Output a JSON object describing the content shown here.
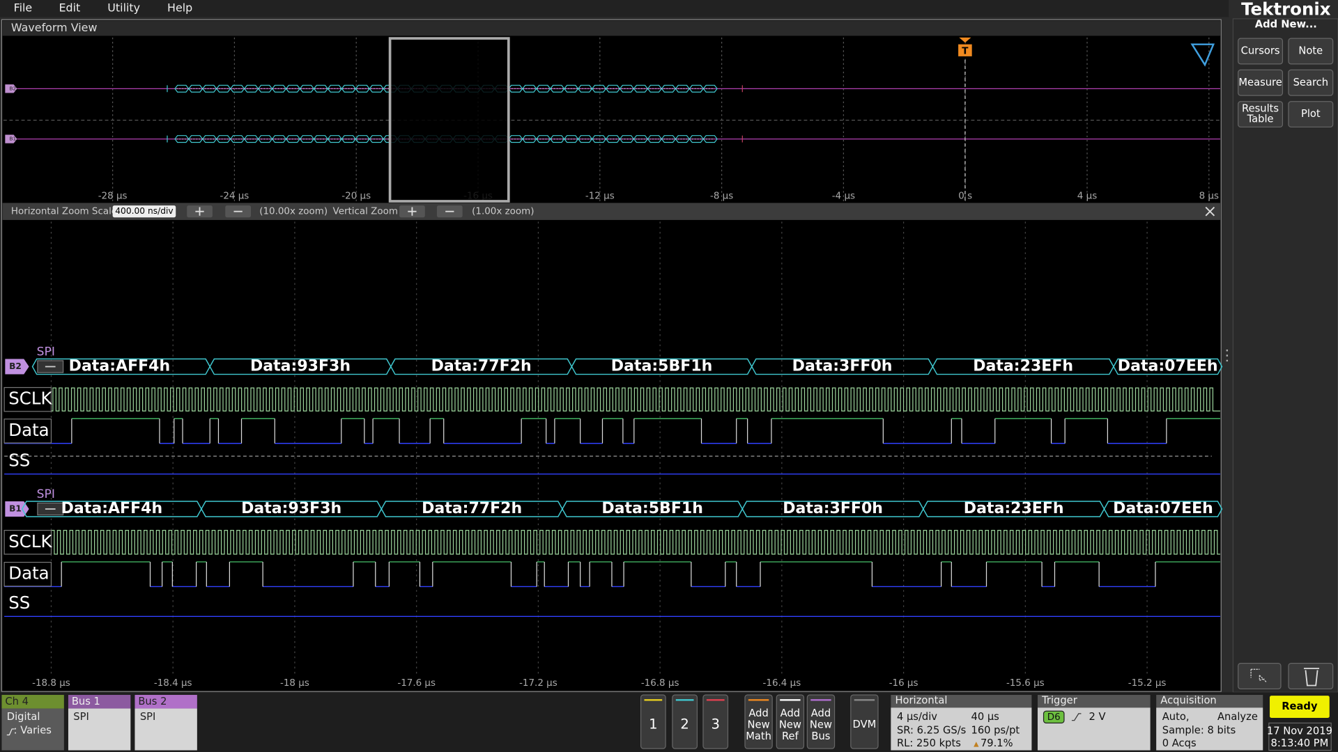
{
  "menu": [
    "File",
    "Edit",
    "Utility",
    "Help"
  ],
  "brand": {
    "logo": "Tektronix",
    "add_new": "Add New..."
  },
  "side_buttons": [
    [
      "Cursors"
    ],
    [
      "Note"
    ],
    [
      "Measure"
    ],
    [
      "Search"
    ],
    [
      "Results",
      "Table"
    ],
    [
      "Plot"
    ]
  ],
  "waveform_view": {
    "title": "Waveform View",
    "trigger": "T",
    "buses": [
      "B2",
      "B1"
    ],
    "x_ticks": [
      "-28 µs",
      "-24 µs",
      "-20 µs",
      "-16 µs",
      "-12 µs",
      "-8 µs",
      "-4 µs",
      "0 s",
      "4 µs",
      "8 µs"
    ]
  },
  "zoom_bar": {
    "h_label": "Horizontal Zoom Scale",
    "h_value": "400.00 ns/div",
    "h_zoom": "(10.00x zoom)",
    "v_label": "Vertical Zoom",
    "v_zoom": "(1.00x zoom)"
  },
  "zoom_view": {
    "buses": [
      {
        "badge": "B2",
        "protocol": "SPI",
        "packets": [
          "Data:AFF4h",
          "Data:93F3h",
          "Data:77F2h",
          "Data:5BF1h",
          "Data:3FF0h",
          "Data:23EFh",
          "Data:07EEh"
        ],
        "signals": [
          "SCLK",
          "Data",
          "SS"
        ]
      },
      {
        "badge": "B1",
        "protocol": "SPI",
        "packets": [
          "Data:AFF4h",
          "Data:93F3h",
          "Data:77F2h",
          "Data:5BF1h",
          "Data:3FF0h",
          "Data:23EFh",
          "Data:07EEh"
        ],
        "signals": [
          "SCLK",
          "Data",
          "SS"
        ]
      }
    ],
    "x_ticks": [
      "-18.8 µs",
      "-18.4 µs",
      "-18 µs",
      "-17.6 µs",
      "-17.2 µs",
      "-16.8 µs",
      "-16.4 µs",
      "-16 µs",
      "-15.6 µs",
      "-15.2 µs"
    ]
  },
  "bottom": {
    "ch4": {
      "title": "Ch 4",
      "type": "Digital",
      "threshold": ": Varies"
    },
    "bus1": {
      "title": "Bus 1",
      "protocol": "SPI"
    },
    "bus2": {
      "title": "Bus 2",
      "protocol": "SPI"
    },
    "channels": [
      "1",
      "2",
      "3"
    ],
    "add": [
      [
        "Add",
        "New",
        "Math"
      ],
      [
        "Add",
        "New",
        "Ref"
      ],
      [
        "Add",
        "New",
        "Bus"
      ]
    ],
    "dvm": "DVM",
    "horizontal": {
      "title": "Horizontal",
      "scale": "4 µs/div",
      "position": "40 µs",
      "sr": "SR: 6.25 GS/s",
      "pt": "160 ps/pt",
      "rl": "RL: 250 kpts",
      "pct": "79.1%"
    },
    "trigger": {
      "title": "Trigger",
      "source": "D6",
      "level": "2 V"
    },
    "acquisition": {
      "title": "Acquisition",
      "mode": "Auto,",
      "analyze": "Analyze",
      "sample": "Sample: 8 bits",
      "acqs": "0 Acqs"
    },
    "status": "Ready",
    "date": "17 Nov 2019",
    "time": "8:13:40 PM"
  }
}
